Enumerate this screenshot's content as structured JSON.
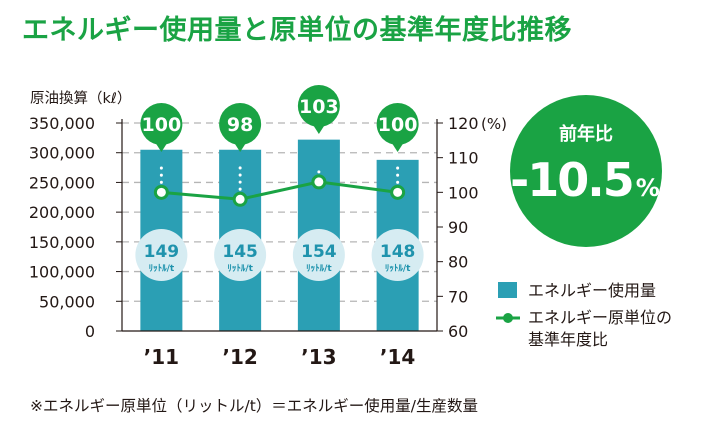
{
  "title": "エネルギー使用量と原単位の基準年度比推移",
  "footnote": "※エネルギー原単位（リットル/t）＝エネルギー使用量/生産数量",
  "badge": {
    "label": "前年比",
    "value": "-10.5",
    "suffix": "%"
  },
  "colors": {
    "accent": "#1aa344",
    "bar": "#2b9fb4",
    "line": "#1aa344",
    "bubble": "#d6ecf2",
    "bubble_text": "#1f93ad"
  },
  "chart_data": {
    "type": "bar+line",
    "categories": [
      "’11",
      "’12",
      "’13",
      "’14"
    ],
    "ylabel_left": "原油換算（kℓ）",
    "ylabel_right": "(%)",
    "ylim_left": [
      0,
      350000
    ],
    "ylim_right": [
      60,
      120
    ],
    "yticks_left": [
      "0",
      "50,000",
      "100,000",
      "150,000",
      "200,000",
      "250,000",
      "300,000",
      "350,000"
    ],
    "yticks_right": [
      "60",
      "70",
      "80",
      "90",
      "100",
      "110",
      "120"
    ],
    "grid": true,
    "series": [
      {
        "name": "エネルギー使用量",
        "type": "bar",
        "axis": "left",
        "values": [
          305000,
          305000,
          322000,
          288000
        ]
      },
      {
        "name": "エネルギー原単位の基準年度比",
        "type": "line",
        "axis": "right",
        "values": [
          100,
          98,
          103,
          100
        ]
      }
    ],
    "pin_labels": [
      "100",
      "98",
      "103",
      "100"
    ],
    "bubble_values": [
      "149",
      "145",
      "154",
      "148"
    ],
    "bubble_unit": "ﾘｯﾄﾙ/t",
    "legend": [
      "エネルギー使用量",
      "エネルギー原単位の",
      "基準年度比"
    ]
  }
}
